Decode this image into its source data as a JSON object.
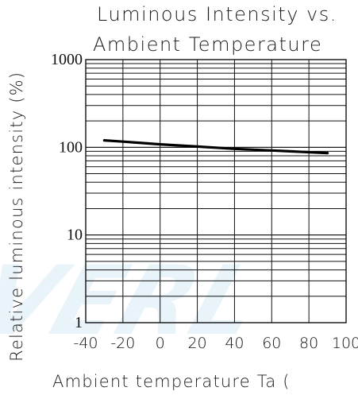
{
  "chart_data": {
    "type": "line",
    "title_line1": "Luminous Intensity vs.",
    "title_line2": "Ambient Temperature",
    "xlabel": "Ambient temperature Ta (",
    "ylabel": "Relative luminous intensity (%)",
    "yscale": "log",
    "xlim": [
      -40,
      100
    ],
    "ylim": [
      1,
      1000
    ],
    "x_ticks": [
      "-40",
      "-20",
      "0",
      "20",
      "40",
      "60",
      "80",
      "100"
    ],
    "y_ticks": [
      "1",
      "10",
      "100",
      "1000"
    ],
    "grid": true,
    "series": [
      {
        "x": [
          -30,
          -20,
          -10,
          0,
          10,
          20,
          30,
          40,
          50,
          60,
          70,
          80,
          90
        ],
        "values": [
          120,
          116,
          112,
          108,
          105,
          102,
          99,
          96,
          94,
          92,
          90,
          88,
          86
        ]
      }
    ]
  },
  "watermark_text": "EVERL",
  "colors": {
    "axis": "#111111",
    "grid": "#111111",
    "curve": "#000000",
    "watermark": "#2f8fd3"
  }
}
